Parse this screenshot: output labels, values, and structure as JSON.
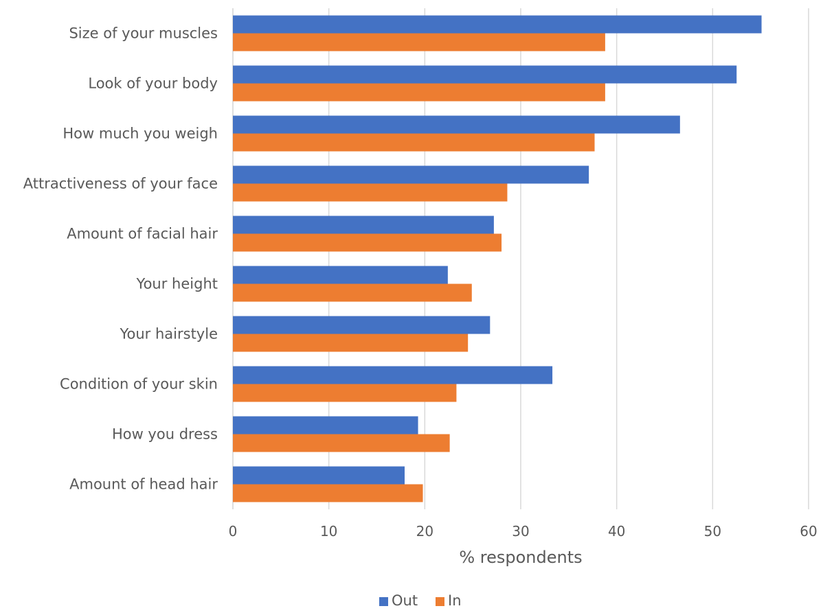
{
  "chart_data": {
    "type": "bar",
    "orientation": "horizontal",
    "categories": [
      "Size of your muscles",
      "Look of your body",
      "How much you weigh",
      "Attractiveness of your face",
      "Amount of facial hair",
      "Your height",
      "Your hairstyle",
      "Condition of your skin",
      "How you dress",
      "Amount of head hair"
    ],
    "series": [
      {
        "name": "Out",
        "color": "#4472C4",
        "values": [
          55.1,
          52.5,
          46.6,
          37.1,
          27.2,
          22.4,
          26.8,
          33.3,
          19.3,
          17.9
        ]
      },
      {
        "name": "In",
        "color": "#ED7D31",
        "values": [
          38.8,
          38.8,
          37.7,
          28.6,
          28.0,
          24.9,
          24.5,
          23.3,
          22.6,
          19.8
        ]
      }
    ],
    "xlabel": "% respondents",
    "xlim": [
      0,
      60
    ],
    "xticks": [
      0,
      10,
      20,
      30,
      40,
      50,
      60
    ],
    "grid": true,
    "legend_position": "bottom"
  }
}
